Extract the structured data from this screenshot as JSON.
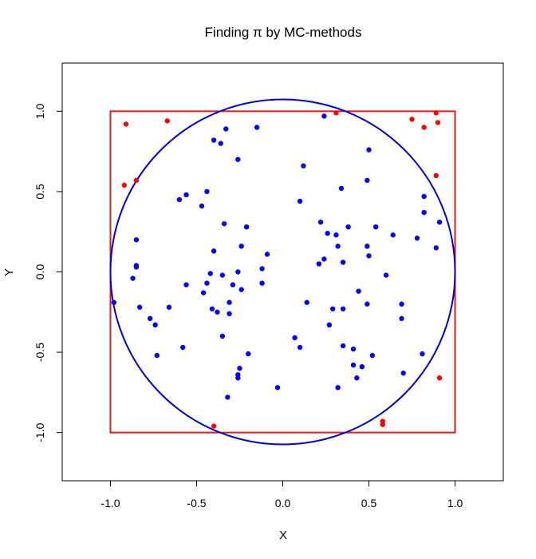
{
  "chart_data": {
    "type": "scatter",
    "title": "Finding π by MC-methods",
    "xlabel": "X",
    "ylabel": "Y",
    "xlim": [
      -1.28,
      1.28
    ],
    "ylim": [
      -1.3,
      1.3
    ],
    "x_ticks": [
      -1.0,
      -0.5,
      0.0,
      0.5,
      1.0
    ],
    "y_ticks": [
      -1.0,
      -0.5,
      0.0,
      0.5,
      1.0
    ],
    "x_tick_labels": [
      "-1.0",
      "-0.5",
      "0.0",
      "0.5",
      "1.0"
    ],
    "y_tick_labels": [
      "-1.0",
      "-0.5",
      "0.0",
      "0.5",
      "1.0"
    ],
    "square": {
      "xmin": -1,
      "xmax": 1,
      "ymin": -1,
      "ymax": 1,
      "color": "#e31a1c"
    },
    "circle": {
      "cx": 0,
      "cy": 0,
      "r": 1,
      "color": "#0000cc"
    },
    "series": [
      {
        "name": "inside",
        "color": "#0000ff",
        "points": [
          [
            -0.98,
            -0.19
          ],
          [
            -0.87,
            -0.04
          ],
          [
            -0.85,
            0.2
          ],
          [
            -0.85,
            0.03
          ],
          [
            -0.85,
            0.04
          ],
          [
            -0.83,
            -0.22
          ],
          [
            -0.77,
            -0.29
          ],
          [
            -0.74,
            -0.33
          ],
          [
            -0.73,
            -0.52
          ],
          [
            -0.66,
            -0.22
          ],
          [
            -0.6,
            0.45
          ],
          [
            -0.58,
            -0.47
          ],
          [
            -0.56,
            0.48
          ],
          [
            -0.56,
            -0.08
          ],
          [
            -0.47,
            0.41
          ],
          [
            -0.46,
            -0.13
          ],
          [
            -0.44,
            0.5
          ],
          [
            -0.44,
            -0.07
          ],
          [
            -0.41,
            -0.23
          ],
          [
            -0.42,
            -0.01
          ],
          [
            -0.4,
            0.82
          ],
          [
            -0.4,
            0.13
          ],
          [
            -0.38,
            -0.25
          ],
          [
            -0.36,
            0.8
          ],
          [
            -0.35,
            -0.02
          ],
          [
            -0.34,
            0.3
          ],
          [
            -0.35,
            -0.4
          ],
          [
            -0.33,
            0.89
          ],
          [
            -0.32,
            -0.78
          ],
          [
            -0.31,
            -0.19
          ],
          [
            -0.31,
            -0.26
          ],
          [
            -0.29,
            -0.08
          ],
          [
            -0.26,
            0.7
          ],
          [
            -0.26,
            0.0
          ],
          [
            -0.26,
            -0.64
          ],
          [
            -0.26,
            -0.66
          ],
          [
            -0.25,
            -0.6
          ],
          [
            -0.24,
            0.16
          ],
          [
            -0.24,
            -0.11
          ],
          [
            -0.21,
            0.28
          ],
          [
            -0.2,
            -0.51
          ],
          [
            -0.15,
            0.9
          ],
          [
            -0.12,
            0.02
          ],
          [
            -0.12,
            -0.07
          ],
          [
            -0.09,
            0.11
          ],
          [
            -0.03,
            -0.72
          ],
          [
            0.07,
            -0.41
          ],
          [
            0.1,
            0.44
          ],
          [
            0.1,
            -0.47
          ],
          [
            0.12,
            0.66
          ],
          [
            0.14,
            -0.19
          ],
          [
            0.21,
            0.05
          ],
          [
            0.22,
            0.31
          ],
          [
            0.24,
            0.08
          ],
          [
            0.24,
            0.97
          ],
          [
            0.26,
            0.24
          ],
          [
            0.27,
            -0.33
          ],
          [
            0.29,
            -0.23
          ],
          [
            0.31,
            0.23
          ],
          [
            0.32,
            0.16
          ],
          [
            0.32,
            -0.72
          ],
          [
            0.34,
            0.52
          ],
          [
            0.35,
            0.06
          ],
          [
            0.35,
            -0.23
          ],
          [
            0.35,
            -0.46
          ],
          [
            0.38,
            0.28
          ],
          [
            0.41,
            -0.58
          ],
          [
            0.41,
            -0.48
          ],
          [
            0.43,
            -0.66
          ],
          [
            0.44,
            -0.12
          ],
          [
            0.46,
            -0.59
          ],
          [
            0.49,
            0.57
          ],
          [
            0.49,
            0.16
          ],
          [
            0.49,
            -0.2
          ],
          [
            0.5,
            0.76
          ],
          [
            0.5,
            0.1
          ],
          [
            0.52,
            -0.52
          ],
          [
            0.54,
            0.28
          ],
          [
            0.6,
            -0.02
          ],
          [
            0.64,
            0.23
          ],
          [
            0.69,
            -0.2
          ],
          [
            0.69,
            -0.29
          ],
          [
            0.7,
            -0.63
          ],
          [
            0.78,
            0.21
          ],
          [
            0.81,
            -0.51
          ],
          [
            0.82,
            0.47
          ],
          [
            0.82,
            0.37
          ],
          [
            0.89,
            0.15
          ],
          [
            0.91,
            0.31
          ]
        ]
      },
      {
        "name": "outside",
        "color": "#ff0000",
        "points": [
          [
            -0.92,
            0.54
          ],
          [
            -0.91,
            0.92
          ],
          [
            -0.85,
            0.57
          ],
          [
            -0.67,
            0.94
          ],
          [
            -0.4,
            -0.96
          ],
          [
            0.31,
            0.99
          ],
          [
            0.58,
            -0.93
          ],
          [
            0.58,
            -0.95
          ],
          [
            0.75,
            0.95
          ],
          [
            0.82,
            0.9
          ],
          [
            0.89,
            0.99
          ],
          [
            0.89,
            0.6
          ],
          [
            0.9,
            0.93
          ],
          [
            0.91,
            -0.66
          ]
        ]
      }
    ]
  }
}
